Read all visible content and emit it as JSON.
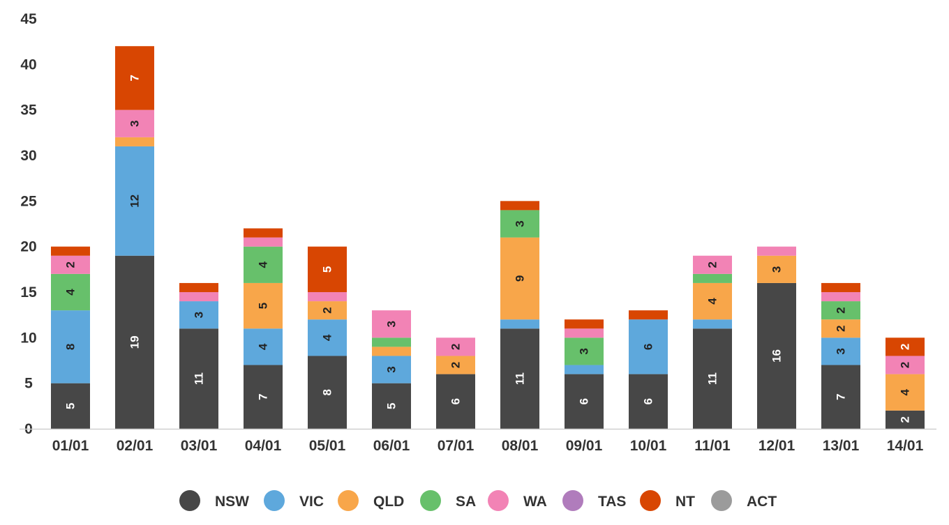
{
  "chart_data": {
    "type": "bar",
    "stacked": true,
    "title": "",
    "xlabel": "",
    "ylabel": "",
    "ylim": [
      0,
      45
    ],
    "yticks": [
      0,
      5,
      10,
      15,
      20,
      25,
      30,
      35,
      40,
      45
    ],
    "grid": false,
    "legend_position": "bottom",
    "categories": [
      "01/01",
      "02/01",
      "03/01",
      "04/01",
      "05/01",
      "06/01",
      "07/01",
      "08/01",
      "09/01",
      "10/01",
      "11/01",
      "12/01",
      "13/01",
      "14/01"
    ],
    "series": [
      {
        "name": "NSW",
        "color": "#474747",
        "label_color": "#ffffff",
        "values": [
          5,
          19,
          11,
          7,
          8,
          5,
          6,
          11,
          6,
          6,
          11,
          16,
          7,
          2
        ]
      },
      {
        "name": "VIC",
        "color": "#5ea8dc",
        "label_color": "#222222",
        "values": [
          8,
          12,
          3,
          4,
          4,
          3,
          0,
          1,
          1,
          6,
          1,
          0,
          3,
          0
        ]
      },
      {
        "name": "QLD",
        "color": "#f8a64a",
        "label_color": "#222222",
        "values": [
          0,
          1,
          0,
          5,
          2,
          1,
          2,
          9,
          0,
          0,
          4,
          3,
          2,
          4
        ]
      },
      {
        "name": "SA",
        "color": "#67c06b",
        "label_color": "#222222",
        "values": [
          4,
          0,
          0,
          4,
          0,
          1,
          0,
          3,
          3,
          0,
          1,
          0,
          2,
          0
        ]
      },
      {
        "name": "WA",
        "color": "#f283b5",
        "label_color": "#222222",
        "values": [
          2,
          3,
          1,
          1,
          1,
          3,
          2,
          0,
          1,
          0,
          2,
          1,
          1,
          2
        ]
      },
      {
        "name": "TAS",
        "color": "#b07cbc",
        "label_color": "#222222",
        "values": [
          0,
          0,
          0,
          0,
          0,
          0,
          0,
          0,
          0,
          0,
          0,
          0,
          0,
          0
        ]
      },
      {
        "name": "NT",
        "color": "#d84602",
        "label_color": "#ffffff",
        "values": [
          1,
          7,
          1,
          1,
          5,
          0,
          0,
          1,
          1,
          1,
          0,
          0,
          1,
          2
        ]
      },
      {
        "name": "ACT",
        "color": "#9b9b9b",
        "label_color": "#ffffff",
        "values": [
          0,
          0,
          0,
          0,
          0,
          0,
          0,
          0,
          0,
          0,
          0,
          0,
          0,
          0
        ]
      }
    ]
  }
}
